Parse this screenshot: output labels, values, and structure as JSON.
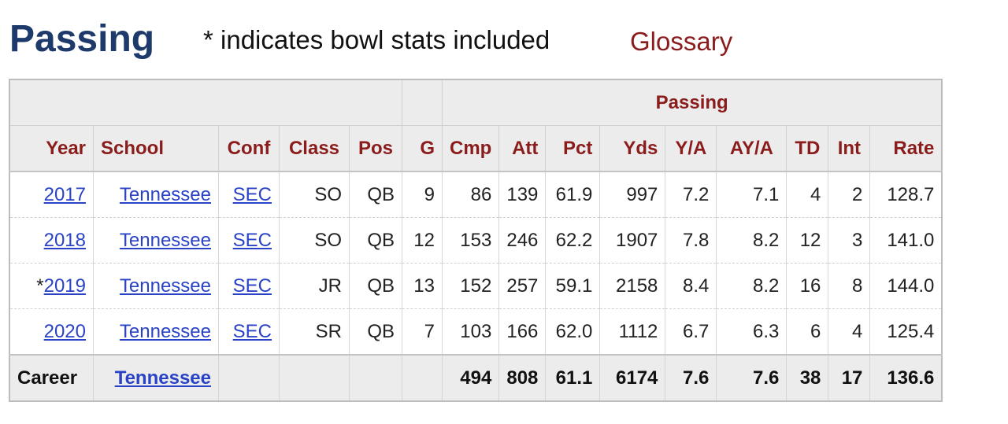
{
  "section": {
    "title": "Passing",
    "note": "* indicates bowl stats included",
    "glossary_label": "Glossary"
  },
  "table": {
    "group_header": "Passing",
    "columns": [
      "Year",
      "School",
      "Conf",
      "Class",
      "Pos",
      "G",
      "Cmp",
      "Att",
      "Pct",
      "Yds",
      "Y/A",
      "AY/A",
      "TD",
      "Int",
      "Rate"
    ],
    "rows": [
      {
        "bowl": "",
        "year": "2017",
        "school": "Tennessee",
        "conf": "SEC",
        "class": "SO",
        "pos": "QB",
        "g": "9",
        "cmp": "86",
        "att": "139",
        "pct": "61.9",
        "yds": "997",
        "ya": "7.2",
        "aya": "7.1",
        "td": "4",
        "int": "2",
        "rate": "128.7"
      },
      {
        "bowl": "",
        "year": "2018",
        "school": "Tennessee",
        "conf": "SEC",
        "class": "SO",
        "pos": "QB",
        "g": "12",
        "cmp": "153",
        "att": "246",
        "pct": "62.2",
        "yds": "1907",
        "ya": "7.8",
        "aya": "8.2",
        "td": "12",
        "int": "3",
        "rate": "141.0"
      },
      {
        "bowl": "*",
        "year": "2019",
        "school": "Tennessee",
        "conf": "SEC",
        "class": "JR",
        "pos": "QB",
        "g": "13",
        "cmp": "152",
        "att": "257",
        "pct": "59.1",
        "yds": "2158",
        "ya": "8.4",
        "aya": "8.2",
        "td": "16",
        "int": "8",
        "rate": "144.0"
      },
      {
        "bowl": "",
        "year": "2020",
        "school": "Tennessee",
        "conf": "SEC",
        "class": "SR",
        "pos": "QB",
        "g": "7",
        "cmp": "103",
        "att": "166",
        "pct": "62.0",
        "yds": "1112",
        "ya": "6.7",
        "aya": "6.3",
        "td": "6",
        "int": "4",
        "rate": "125.4"
      }
    ],
    "career": {
      "label": "Career",
      "school": "Tennessee",
      "cmp": "494",
      "att": "808",
      "pct": "61.1",
      "yds": "6174",
      "ya": "7.6",
      "aya": "7.6",
      "td": "38",
      "int": "17",
      "rate": "136.6"
    }
  },
  "colors": {
    "title": "#1d3a6b",
    "header_text": "#8b1c1c",
    "link": "#2a43c6",
    "header_bg": "#ececec"
  }
}
